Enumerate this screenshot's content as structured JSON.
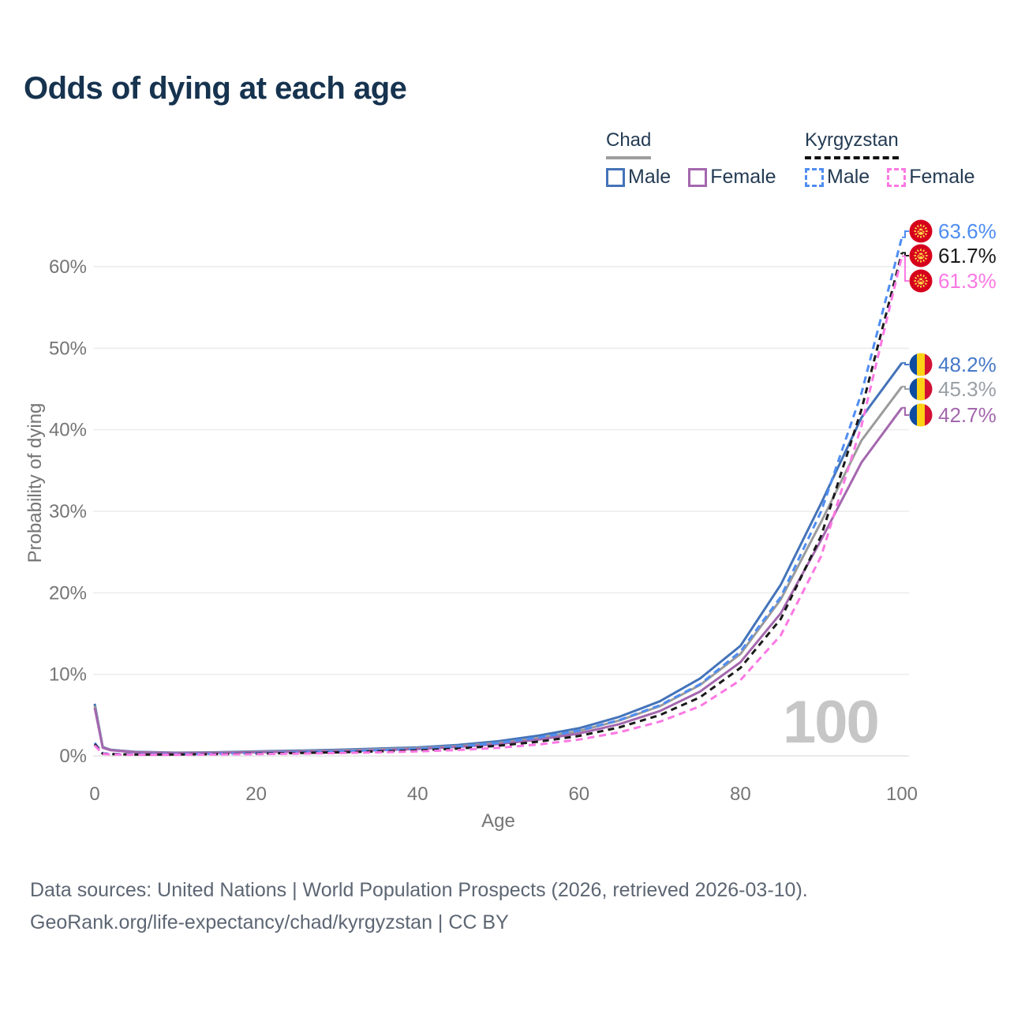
{
  "page": {
    "title": "Odds of dying at each age"
  },
  "legend": {
    "groups": [
      {
        "name": "Chad",
        "line_style": "solid",
        "underline_color": "#9e9e9e",
        "items": [
          {
            "label": "Male",
            "color": "#4473b8"
          },
          {
            "label": "Female",
            "color": "#a467ae"
          }
        ]
      },
      {
        "name": "Kyrgyzstan",
        "line_style": "dashed",
        "underline_color": "#111111",
        "items": [
          {
            "label": "Male",
            "color": "#4f8df2"
          },
          {
            "label": "Female",
            "color": "#fb78e3"
          }
        ]
      }
    ]
  },
  "chart_data": {
    "type": "line",
    "title": "Odds of dying at each age",
    "xlabel": "Age",
    "ylabel": "Probability of dying",
    "x_ticks": [
      "0",
      "20",
      "40",
      "60",
      "80",
      "100"
    ],
    "y_ticks": [
      "0%",
      "10%",
      "20%",
      "30%",
      "40%",
      "50%",
      "60%"
    ],
    "xlim": [
      0,
      100
    ],
    "ylim_percent": [
      0,
      65
    ],
    "grid": "horizontal",
    "hover_age": "100",
    "series": [
      {
        "name": "Chad Male",
        "country": "Chad",
        "sex": "male",
        "color": "#4473b8",
        "dash": "none",
        "points": [
          [
            0,
            6.4
          ],
          [
            1,
            1.1
          ],
          [
            2,
            0.75
          ],
          [
            5,
            0.5
          ],
          [
            10,
            0.4
          ],
          [
            15,
            0.45
          ],
          [
            20,
            0.55
          ],
          [
            25,
            0.65
          ],
          [
            30,
            0.75
          ],
          [
            35,
            0.9
          ],
          [
            40,
            1.05
          ],
          [
            45,
            1.35
          ],
          [
            50,
            1.8
          ],
          [
            55,
            2.5
          ],
          [
            60,
            3.4
          ],
          [
            65,
            4.8
          ],
          [
            70,
            6.7
          ],
          [
            75,
            9.5
          ],
          [
            80,
            13.5
          ],
          [
            85,
            21
          ],
          [
            90,
            31
          ],
          [
            95,
            41.5
          ],
          [
            100,
            48.2
          ]
        ]
      },
      {
        "name": "Chad Average",
        "country": "Chad",
        "sex": "both",
        "color": "#9b9b9b",
        "dash": "none",
        "points": [
          [
            0,
            6.15
          ],
          [
            1,
            1.05
          ],
          [
            2,
            0.72
          ],
          [
            5,
            0.48
          ],
          [
            10,
            0.37
          ],
          [
            15,
            0.41
          ],
          [
            20,
            0.5
          ],
          [
            25,
            0.58
          ],
          [
            30,
            0.67
          ],
          [
            35,
            0.8
          ],
          [
            40,
            0.95
          ],
          [
            45,
            1.2
          ],
          [
            50,
            1.6
          ],
          [
            55,
            2.2
          ],
          [
            60,
            3.05
          ],
          [
            65,
            4.35
          ],
          [
            70,
            6.1
          ],
          [
            75,
            8.7
          ],
          [
            80,
            12.5
          ],
          [
            85,
            19.2
          ],
          [
            90,
            28.7
          ],
          [
            95,
            38.7
          ],
          [
            100,
            45.3
          ]
        ]
      },
      {
        "name": "Chad Female",
        "country": "Chad",
        "sex": "female",
        "color": "#a467ae",
        "dash": "none",
        "points": [
          [
            0,
            5.9
          ],
          [
            1,
            1.0
          ],
          [
            2,
            0.7
          ],
          [
            5,
            0.45
          ],
          [
            10,
            0.35
          ],
          [
            15,
            0.38
          ],
          [
            20,
            0.45
          ],
          [
            25,
            0.52
          ],
          [
            30,
            0.6
          ],
          [
            35,
            0.7
          ],
          [
            40,
            0.85
          ],
          [
            45,
            1.1
          ],
          [
            50,
            1.45
          ],
          [
            55,
            2.0
          ],
          [
            60,
            2.75
          ],
          [
            65,
            3.9
          ],
          [
            70,
            5.5
          ],
          [
            75,
            7.9
          ],
          [
            80,
            11.5
          ],
          [
            85,
            17.5
          ],
          [
            90,
            26.5
          ],
          [
            95,
            36
          ],
          [
            100,
            42.7
          ]
        ]
      },
      {
        "name": "Kyrgyzstan Male",
        "country": "Kyrgyzstan",
        "sex": "male",
        "color": "#4f8df2",
        "dash": "9 6",
        "points": [
          [
            0,
            1.6
          ],
          [
            1,
            0.3
          ],
          [
            2,
            0.25
          ],
          [
            5,
            0.2
          ],
          [
            10,
            0.2
          ],
          [
            15,
            0.25
          ],
          [
            20,
            0.35
          ],
          [
            25,
            0.45
          ],
          [
            30,
            0.55
          ],
          [
            35,
            0.7
          ],
          [
            40,
            0.85
          ],
          [
            45,
            1.15
          ],
          [
            50,
            1.6
          ],
          [
            55,
            2.25
          ],
          [
            60,
            3.1
          ],
          [
            65,
            4.4
          ],
          [
            70,
            6.2
          ],
          [
            75,
            8.8
          ],
          [
            80,
            12.8
          ],
          [
            85,
            19.5
          ],
          [
            90,
            30
          ],
          [
            95,
            44.5
          ],
          [
            100,
            63.6
          ]
        ]
      },
      {
        "name": "Kyrgyzstan Average",
        "country": "Kyrgyzstan",
        "sex": "both",
        "color": "#1a1a1a",
        "dash": "8 6",
        "points": [
          [
            0,
            1.45
          ],
          [
            1,
            0.27
          ],
          [
            2,
            0.22
          ],
          [
            5,
            0.17
          ],
          [
            10,
            0.17
          ],
          [
            15,
            0.21
          ],
          [
            20,
            0.28
          ],
          [
            25,
            0.36
          ],
          [
            30,
            0.44
          ],
          [
            35,
            0.55
          ],
          [
            40,
            0.68
          ],
          [
            45,
            0.9
          ],
          [
            50,
            1.25
          ],
          [
            55,
            1.75
          ],
          [
            60,
            2.45
          ],
          [
            65,
            3.5
          ],
          [
            70,
            5.0
          ],
          [
            75,
            7.2
          ],
          [
            80,
            10.8
          ],
          [
            85,
            16.8
          ],
          [
            90,
            27
          ],
          [
            95,
            42.5
          ],
          [
            100,
            61.7
          ]
        ]
      },
      {
        "name": "Kyrgyzstan Female",
        "country": "Kyrgyzstan",
        "sex": "female",
        "color": "#fb78e3",
        "dash": "9 6",
        "points": [
          [
            0,
            1.3
          ],
          [
            1,
            0.24
          ],
          [
            2,
            0.19
          ],
          [
            5,
            0.14
          ],
          [
            10,
            0.14
          ],
          [
            15,
            0.17
          ],
          [
            20,
            0.22
          ],
          [
            25,
            0.28
          ],
          [
            30,
            0.35
          ],
          [
            35,
            0.44
          ],
          [
            40,
            0.55
          ],
          [
            45,
            0.73
          ],
          [
            50,
            1.0
          ],
          [
            55,
            1.4
          ],
          [
            60,
            2.0
          ],
          [
            65,
            2.9
          ],
          [
            70,
            4.2
          ],
          [
            75,
            6.1
          ],
          [
            80,
            9.3
          ],
          [
            85,
            14.8
          ],
          [
            90,
            24.5
          ],
          [
            95,
            40.5
          ],
          [
            100,
            61.3
          ]
        ]
      }
    ]
  },
  "end_labels": [
    {
      "value": "63.6%",
      "series": "Kyrgyzstan Male",
      "flag": "kyrgyzstan",
      "color": "#4f8df2",
      "pct": 63.6
    },
    {
      "value": "61.7%",
      "series": "Kyrgyzstan Average",
      "flag": "kyrgyzstan",
      "color": "#1a1a1a",
      "pct": 61.7
    },
    {
      "value": "61.3%",
      "series": "Kyrgyzstan Female",
      "flag": "kyrgyzstan",
      "color": "#fb78e3",
      "pct": 61.3
    },
    {
      "value": "48.2%",
      "series": "Chad Male",
      "flag": "chad",
      "color": "#4679c8",
      "pct": 48.2
    },
    {
      "value": "45.3%",
      "series": "Chad Average",
      "flag": "chad",
      "color": "#9aa0a6",
      "pct": 45.3
    },
    {
      "value": "42.7%",
      "series": "Chad Female",
      "flag": "chad",
      "color": "#a467ae",
      "pct": 42.7
    }
  ],
  "watermark": "100",
  "footer": {
    "line1": "Data sources: United Nations | World Population Prospects (2026, retrieved 2026-03-10).",
    "line2": "GeoRank.org/life-expectancy/chad/kyrgyzstan | CC BY"
  }
}
